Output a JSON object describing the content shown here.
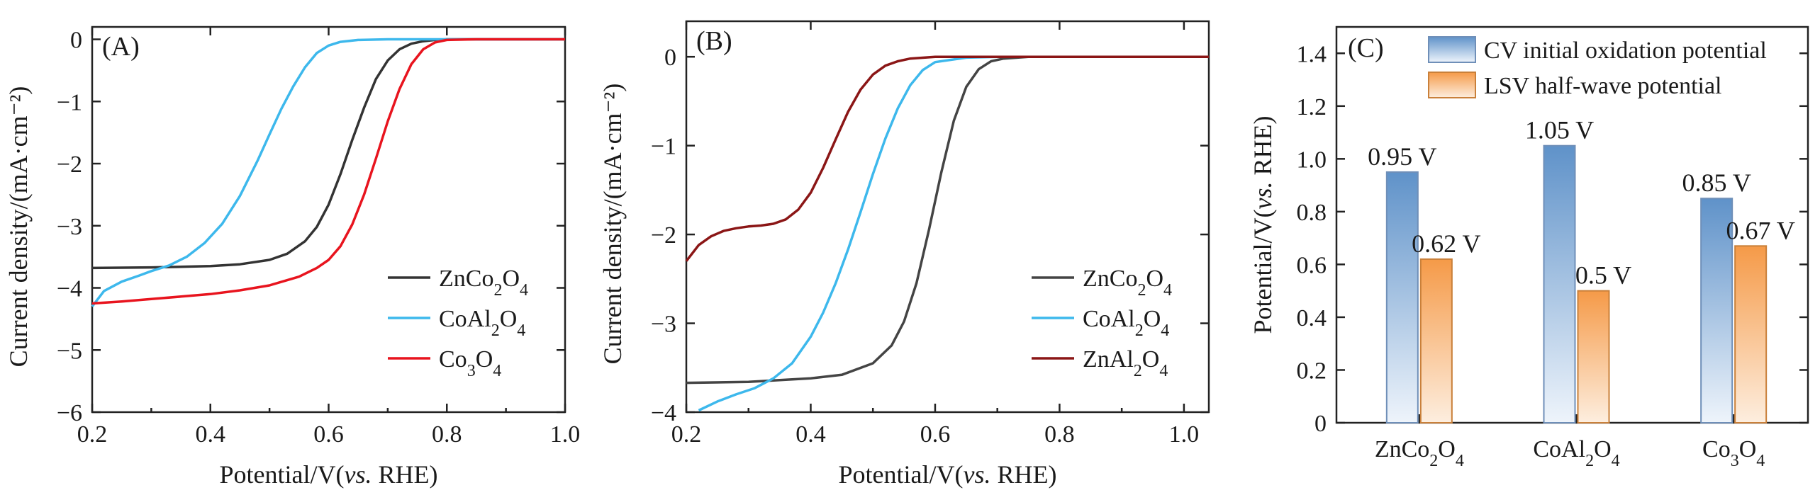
{
  "chart_data": [
    {
      "panel_label": "(A)",
      "type": "line",
      "xlabel_pre": "Potential/V(",
      "xlabel_it": "vs.",
      "xlabel_post": " RHE)",
      "ylabel": "Current density/(mA·cm⁻²)",
      "xlim": [
        0.2,
        1.0
      ],
      "ylim": [
        -6,
        0.2
      ],
      "xticks": [
        "0.2",
        "0.4",
        "0.6",
        "0.8",
        "1.0"
      ],
      "yticks": [
        "0",
        "−1",
        "−2",
        "−3",
        "−4",
        "−5",
        "−6"
      ],
      "legend_position": "bottom-right",
      "series": [
        {
          "name_parts": [
            [
              "Zn",
              ""
            ],
            [
              "Co",
              "2"
            ],
            [
              "O",
              "4"
            ]
          ],
          "color": "#333333",
          "x": [
            0.2,
            0.3,
            0.4,
            0.45,
            0.5,
            0.53,
            0.56,
            0.58,
            0.6,
            0.62,
            0.64,
            0.66,
            0.68,
            0.7,
            0.72,
            0.74,
            0.76,
            0.78,
            0.8,
            0.85,
            0.9,
            1.0
          ],
          "y": [
            -3.68,
            -3.67,
            -3.65,
            -3.62,
            -3.55,
            -3.45,
            -3.25,
            -3.02,
            -2.66,
            -2.17,
            -1.62,
            -1.1,
            -0.64,
            -0.34,
            -0.16,
            -0.07,
            -0.03,
            -0.01,
            0.0,
            0.0,
            0.0,
            0.0
          ]
        },
        {
          "name_parts": [
            [
              "CoAl",
              ""
            ],
            [
              "",
              "2"
            ],
            [
              "O",
              "4"
            ]
          ],
          "color": "#3db8ec",
          "x": [
            0.2,
            0.22,
            0.25,
            0.28,
            0.3,
            0.33,
            0.36,
            0.39,
            0.42,
            0.45,
            0.48,
            0.5,
            0.52,
            0.54,
            0.56,
            0.58,
            0.6,
            0.62,
            0.65,
            0.7,
            0.8,
            1.0
          ],
          "y": [
            -4.3,
            -4.05,
            -3.9,
            -3.8,
            -3.73,
            -3.64,
            -3.5,
            -3.28,
            -2.97,
            -2.52,
            -1.95,
            -1.53,
            -1.12,
            -0.76,
            -0.45,
            -0.22,
            -0.1,
            -0.04,
            -0.01,
            0.0,
            0.0,
            0.0
          ],
          "label_sub_first": true
        },
        {
          "name_parts": [
            [
              "Co",
              "3"
            ],
            [
              "O",
              "4"
            ]
          ],
          "color": "#e8141e",
          "x": [
            0.2,
            0.25,
            0.3,
            0.35,
            0.4,
            0.45,
            0.5,
            0.55,
            0.58,
            0.6,
            0.62,
            0.64,
            0.66,
            0.68,
            0.7,
            0.72,
            0.74,
            0.76,
            0.78,
            0.8,
            0.85,
            1.0
          ],
          "y": [
            -4.25,
            -4.22,
            -4.18,
            -4.14,
            -4.1,
            -4.04,
            -3.96,
            -3.82,
            -3.68,
            -3.55,
            -3.33,
            -2.98,
            -2.5,
            -1.92,
            -1.32,
            -0.8,
            -0.4,
            -0.16,
            -0.05,
            -0.01,
            0.0,
            0.0
          ]
        }
      ]
    },
    {
      "panel_label": "(B)",
      "type": "line",
      "xlabel_pre": "Potential/V(",
      "xlabel_it": "vs.",
      "xlabel_post": " RHE)",
      "ylabel": "Current density/(mA·cm⁻²)",
      "xlim": [
        0.2,
        1.04
      ],
      "ylim": [
        -4,
        0.4
      ],
      "xticks": [
        "0.2",
        "0.4",
        "0.6",
        "0.8",
        "1.0"
      ],
      "yticks": [
        "0",
        "−1",
        "−2",
        "−3",
        "−4"
      ],
      "legend_position": "bottom-right",
      "series": [
        {
          "name_parts": [
            [
              "Zn",
              ""
            ],
            [
              "Co",
              "2"
            ],
            [
              "O",
              "4"
            ]
          ],
          "color": "#444444",
          "x": [
            0.2,
            0.3,
            0.4,
            0.45,
            0.5,
            0.53,
            0.55,
            0.57,
            0.59,
            0.61,
            0.63,
            0.65,
            0.67,
            0.69,
            0.71,
            0.75,
            0.8,
            0.9,
            1.04
          ],
          "y": [
            -3.67,
            -3.66,
            -3.62,
            -3.58,
            -3.45,
            -3.25,
            -2.98,
            -2.55,
            -1.95,
            -1.3,
            -0.72,
            -0.34,
            -0.14,
            -0.05,
            -0.02,
            0.0,
            0.0,
            0.0,
            0.0
          ]
        },
        {
          "name_parts": [
            [
              "CoAl",
              ""
            ],
            [
              "",
              "2"
            ],
            [
              "O",
              "4"
            ]
          ],
          "color": "#3db8ec",
          "x": [
            0.22,
            0.25,
            0.28,
            0.31,
            0.34,
            0.37,
            0.4,
            0.42,
            0.44,
            0.46,
            0.48,
            0.5,
            0.52,
            0.54,
            0.56,
            0.58,
            0.6,
            0.65,
            0.7,
            1.04
          ],
          "y": [
            -3.98,
            -3.88,
            -3.8,
            -3.73,
            -3.62,
            -3.45,
            -3.15,
            -2.88,
            -2.55,
            -2.17,
            -1.75,
            -1.32,
            -0.92,
            -0.58,
            -0.32,
            -0.15,
            -0.06,
            -0.01,
            0.0,
            0.0
          ]
        },
        {
          "name_parts": [
            [
              "ZnAl",
              ""
            ],
            [
              "",
              "2"
            ],
            [
              "O",
              "4"
            ]
          ],
          "color": "#8b1616",
          "x": [
            0.2,
            0.22,
            0.24,
            0.26,
            0.28,
            0.3,
            0.32,
            0.34,
            0.36,
            0.38,
            0.4,
            0.42,
            0.44,
            0.46,
            0.48,
            0.5,
            0.52,
            0.54,
            0.56,
            0.6,
            0.7,
            1.04
          ],
          "y": [
            -2.3,
            -2.12,
            -2.02,
            -1.96,
            -1.93,
            -1.91,
            -1.9,
            -1.88,
            -1.83,
            -1.72,
            -1.53,
            -1.25,
            -0.93,
            -0.62,
            -0.37,
            -0.2,
            -0.1,
            -0.05,
            -0.02,
            0.0,
            0.0,
            0.0
          ]
        }
      ]
    },
    {
      "panel_label": "(C)",
      "type": "bar",
      "ylabel_pre": "Potential/V(",
      "ylabel_it": "vs.",
      "ylabel_post": " RHE)",
      "ylim": [
        0,
        1.5
      ],
      "yticks": [
        "0",
        "0.2",
        "0.4",
        "0.6",
        "0.8",
        "1.0",
        "1.2",
        "1.4"
      ],
      "categories": [
        [
          [
            "Zn",
            ""
          ],
          [
            "Co",
            "2"
          ],
          [
            "O",
            "4"
          ]
        ],
        [
          [
            "CoAl",
            ""
          ],
          [
            "",
            "2"
          ],
          [
            "O",
            "4"
          ]
        ],
        [
          [
            "Co",
            "3"
          ],
          [
            "O",
            "4"
          ]
        ]
      ],
      "legend_position": "top",
      "series": [
        {
          "name": "CV initial oxidation potential",
          "color": "#6f9fd1",
          "values": [
            0.95,
            1.05,
            0.85
          ],
          "labels": [
            "0.95 V",
            "1.05 V",
            "0.85 V"
          ]
        },
        {
          "name": "LSV half-wave potential",
          "color": "#f5a75e",
          "values": [
            0.62,
            0.5,
            0.67
          ],
          "labels": [
            "0.62 V",
            "0.5 V",
            "0.67 V"
          ]
        }
      ]
    }
  ]
}
